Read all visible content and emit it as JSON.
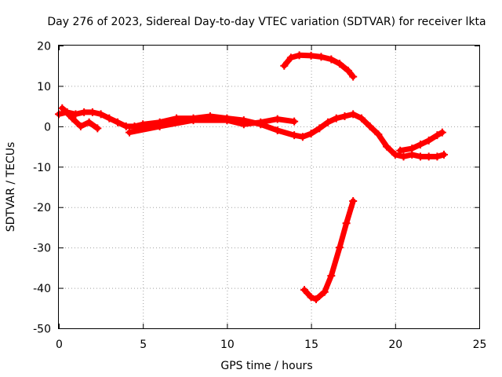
{
  "chart_data": {
    "type": "scatter",
    "title": "Day 276 of 2023, Sidereal Day-to-day VTEC variation (SDTVAR) for receiver lkta",
    "xlabel": "GPS time / hours",
    "ylabel": "SDTVAR / TECUs",
    "xlim": [
      0,
      25
    ],
    "ylim": [
      -50,
      20
    ],
    "xticks": [
      0,
      5,
      10,
      15,
      20,
      25
    ],
    "yticks": [
      20,
      10,
      0,
      -10,
      -20,
      -30,
      -40,
      -50
    ],
    "grid": true,
    "color": "#ff0000",
    "series": [
      {
        "name": "track-main",
        "points": [
          [
            0,
            3
          ],
          [
            0.5,
            3.5
          ],
          [
            1,
            3
          ],
          [
            1.5,
            3.5
          ],
          [
            2,
            3.5
          ],
          [
            2.5,
            3
          ],
          [
            3,
            2
          ],
          [
            3.5,
            1
          ],
          [
            4,
            0
          ],
          [
            4.5,
            0
          ],
          [
            5,
            0.5
          ],
          [
            6,
            1
          ],
          [
            7,
            2
          ],
          [
            8,
            2
          ],
          [
            9,
            2.5
          ],
          [
            10,
            2
          ],
          [
            11,
            1.5
          ],
          [
            12,
            0.5
          ],
          [
            13,
            -1
          ],
          [
            14,
            -2.2
          ],
          [
            14.5,
            -2.6
          ],
          [
            15,
            -1.8
          ],
          [
            15.5,
            -0.5
          ],
          [
            16,
            1
          ],
          [
            16.5,
            2
          ],
          [
            17,
            2.5
          ],
          [
            17.5,
            3
          ],
          [
            18,
            2
          ],
          [
            18.5,
            0
          ],
          [
            19,
            -2
          ],
          [
            19.5,
            -5
          ],
          [
            20,
            -7
          ],
          [
            20.5,
            -7.5
          ],
          [
            21,
            -7
          ],
          [
            21.5,
            -7.5
          ],
          [
            22,
            -7.5
          ],
          [
            22.5,
            -7.5
          ],
          [
            22.9,
            -7
          ]
        ]
      },
      {
        "name": "track-dip-early",
        "points": [
          [
            0.2,
            4.5
          ],
          [
            0.8,
            2
          ],
          [
            1.3,
            0
          ],
          [
            1.8,
            1
          ],
          [
            2.3,
            -0.5
          ]
        ]
      },
      {
        "name": "track-rise",
        "points": [
          [
            4.2,
            -1.5
          ],
          [
            6,
            0
          ],
          [
            8,
            1.5
          ],
          [
            10,
            1.5
          ],
          [
            11,
            0.5
          ],
          [
            12,
            1
          ],
          [
            13,
            1.8
          ],
          [
            14,
            1.2
          ]
        ]
      },
      {
        "name": "track-lower-right",
        "points": [
          [
            20.3,
            -6
          ],
          [
            21,
            -5.5
          ],
          [
            21.5,
            -4.5
          ],
          [
            22,
            -3.5
          ],
          [
            22.5,
            -2.2
          ],
          [
            22.8,
            -1.5
          ]
        ]
      },
      {
        "name": "track-high",
        "points": [
          [
            13.4,
            15
          ],
          [
            13.8,
            17
          ],
          [
            14.3,
            17.6
          ],
          [
            15,
            17.5
          ],
          [
            15.6,
            17.2
          ],
          [
            16.2,
            16.6
          ],
          [
            16.7,
            15.5
          ],
          [
            17.2,
            13.8
          ],
          [
            17.5,
            12.3
          ]
        ]
      },
      {
        "name": "track-low",
        "points": [
          [
            14.6,
            -40.5
          ],
          [
            15,
            -42.3
          ],
          [
            15.3,
            -42.8
          ],
          [
            15.8,
            -41
          ],
          [
            16.2,
            -37
          ],
          [
            16.7,
            -30
          ],
          [
            17.1,
            -24
          ],
          [
            17.5,
            -18.5
          ]
        ]
      }
    ]
  }
}
